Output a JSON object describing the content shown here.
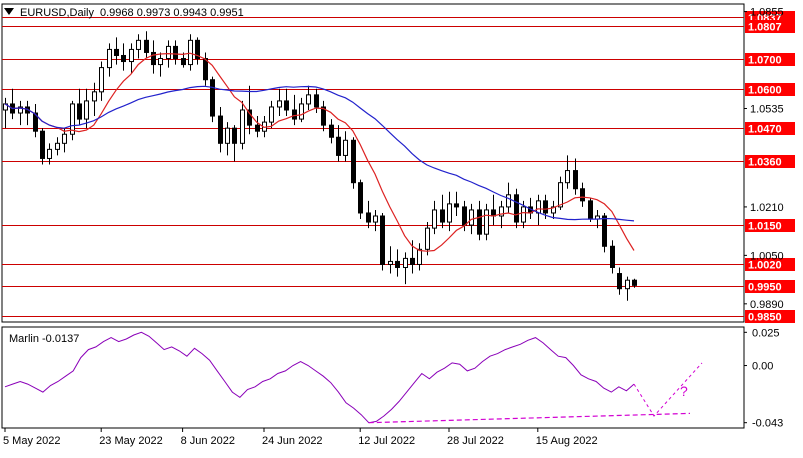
{
  "header": {
    "symbol": "EURUSD,Daily",
    "ohlc": "0.9968 0.9973 0.9943 0.9951"
  },
  "indicator": {
    "label": "Marlin -0.0137",
    "question_mark": "?"
  },
  "colors": {
    "background": "#ffffff",
    "frame": "#000000",
    "level_line": "#cc0000",
    "level_label_bg": "#ff0000",
    "level_label_text": "#ffffff",
    "ma_fast": "#dd2222",
    "ma_slow": "#2222cc",
    "bull_body": "#ffffff",
    "bear_body": "#000000",
    "oscillator": "#8a00b8",
    "dash_projection": "#d200d2"
  },
  "chart_data": [
    {
      "type": "candlestick",
      "title": "EURUSD,Daily",
      "ohlc_latest": {
        "open": 0.9968,
        "high": 0.9973,
        "low": 0.9943,
        "close": 0.9951
      },
      "y_axis": {
        "range": [
          0.983,
          1.088
        ],
        "tick_labels": [
          "1.0855",
          "1.0535",
          "1.0210",
          "1.0050",
          "0.9890"
        ]
      },
      "x_axis": {
        "tick_labels": [
          "5 May 2022",
          "23 May 2022",
          "8 Jun 2022",
          "24 Jun 2022",
          "12 Jul 2022",
          "28 Jul 2022",
          "15 Aug 2022"
        ]
      },
      "levels": [
        "1.0837",
        "1.0807",
        "1.0700",
        "1.0600",
        "1.0470",
        "1.0360",
        "1.0150",
        "1.0020",
        "0.9950",
        "0.9850"
      ],
      "series": [
        {
          "candles": [
            [
              1.053,
              1.057,
              1.047,
              1.055
            ],
            [
              1.055,
              1.06,
              1.05,
              1.052
            ],
            [
              1.052,
              1.056,
              1.048,
              1.054
            ],
            [
              1.054,
              1.056,
              1.048,
              1.052
            ],
            [
              1.052,
              1.055,
              1.044,
              1.046
            ],
            [
              1.046,
              1.047,
              1.035,
              1.037
            ],
            [
              1.037,
              1.042,
              1.035,
              1.04
            ],
            [
              1.04,
              1.044,
              1.038,
              1.042
            ],
            [
              1.042,
              1.047,
              1.039,
              1.045
            ],
            [
              1.045,
              1.056,
              1.043,
              1.055
            ],
            [
              1.055,
              1.06,
              1.048,
              1.05
            ],
            [
              1.05,
              1.06,
              1.047,
              1.056
            ],
            [
              1.056,
              1.062,
              1.051,
              1.059
            ],
            [
              1.059,
              1.069,
              1.056,
              1.067
            ],
            [
              1.067,
              1.075,
              1.064,
              1.073
            ],
            [
              1.073,
              1.077,
              1.068,
              1.071
            ],
            [
              1.071,
              1.075,
              1.066,
              1.069
            ],
            [
              1.069,
              1.075,
              1.065,
              1.073
            ],
            [
              1.073,
              1.078,
              1.07,
              1.076
            ],
            [
              1.076,
              1.079,
              1.07,
              1.072
            ],
            [
              1.072,
              1.076,
              1.065,
              1.068
            ],
            [
              1.068,
              1.072,
              1.064,
              1.07
            ],
            [
              1.07,
              1.076,
              1.067,
              1.074
            ],
            [
              1.074,
              1.076,
              1.068,
              1.07
            ],
            [
              1.07,
              1.072,
              1.067,
              1.068
            ],
            [
              1.068,
              1.078,
              1.066,
              1.076
            ],
            [
              1.076,
              1.077,
              1.068,
              1.07
            ],
            [
              1.07,
              1.072,
              1.061,
              1.063
            ],
            [
              1.063,
              1.064,
              1.049,
              1.051
            ],
            [
              1.051,
              1.054,
              1.039,
              1.042
            ],
            [
              1.042,
              1.049,
              1.038,
              1.047
            ],
            [
              1.047,
              1.048,
              1.036,
              1.042
            ],
            [
              1.042,
              1.056,
              1.04,
              1.053
            ],
            [
              1.053,
              1.061,
              1.045,
              1.048
            ],
            [
              1.048,
              1.051,
              1.044,
              1.046
            ],
            [
              1.046,
              1.051,
              1.044,
              1.049
            ],
            [
              1.049,
              1.056,
              1.047,
              1.054
            ],
            [
              1.054,
              1.06,
              1.051,
              1.056
            ],
            [
              1.056,
              1.06,
              1.051,
              1.053
            ],
            [
              1.053,
              1.058,
              1.048,
              1.05
            ],
            [
              1.05,
              1.057,
              1.049,
              1.055
            ],
            [
              1.055,
              1.061,
              1.053,
              1.058
            ],
            [
              1.058,
              1.06,
              1.052,
              1.054
            ],
            [
              1.054,
              1.056,
              1.046,
              1.048
            ],
            [
              1.048,
              1.05,
              1.042,
              1.044
            ],
            [
              1.044,
              1.048,
              1.036,
              1.038
            ],
            [
              1.038,
              1.046,
              1.036,
              1.043
            ],
            [
              1.043,
              1.044,
              1.027,
              1.029
            ],
            [
              1.029,
              1.03,
              1.017,
              1.019
            ],
            [
              1.019,
              1.023,
              1.014,
              1.016
            ],
            [
              1.016,
              1.02,
              1.013,
              1.018
            ],
            [
              1.018,
              1.019,
              1.0,
              1.002
            ],
            [
              1.002,
              1.008,
              0.999,
              1.003
            ],
            [
              1.003,
              1.007,
              0.998,
              1.001
            ],
            [
              1.001,
              1.006,
              0.9955,
              1.004
            ],
            [
              1.004,
              1.01,
              0.999,
              1.002
            ],
            [
              1.002,
              1.009,
              1.0,
              1.007
            ],
            [
              1.007,
              1.016,
              1.005,
              1.014
            ],
            [
              1.014,
              1.023,
              1.012,
              1.02
            ],
            [
              1.02,
              1.025,
              1.014,
              1.016
            ],
            [
              1.016,
              1.026,
              1.013,
              1.022
            ],
            [
              1.022,
              1.026,
              1.018,
              1.021
            ],
            [
              1.021,
              1.023,
              1.013,
              1.015
            ],
            [
              1.015,
              1.022,
              1.012,
              1.02
            ],
            [
              1.02,
              1.023,
              1.01,
              1.012
            ],
            [
              1.012,
              1.022,
              1.01,
              1.02
            ],
            [
              1.02,
              1.025,
              1.015,
              1.018
            ],
            [
              1.018,
              1.023,
              1.014,
              1.021
            ],
            [
              1.021,
              1.029,
              1.019,
              1.025
            ],
            [
              1.025,
              1.027,
              1.014,
              1.016
            ],
            [
              1.016,
              1.023,
              1.014,
              1.021
            ],
            [
              1.021,
              1.024,
              1.017,
              1.019
            ],
            [
              1.019,
              1.025,
              1.015,
              1.023
            ],
            [
              1.023,
              1.025,
              1.017,
              1.019
            ],
            [
              1.019,
              1.023,
              1.017,
              1.021
            ],
            [
              1.021,
              1.031,
              1.02,
              1.029
            ],
            [
              1.029,
              1.038,
              1.027,
              1.033
            ],
            [
              1.033,
              1.037,
              1.025,
              1.027
            ],
            [
              1.027,
              1.029,
              1.021,
              1.023
            ],
            [
              1.023,
              1.024,
              1.016,
              1.017
            ],
            [
              1.017,
              1.02,
              1.014,
              1.018
            ],
            [
              1.018,
              1.019,
              1.006,
              1.008
            ],
            [
              1.008,
              1.01,
              0.999,
              1.001
            ],
            [
              0.999,
              1.001,
              0.992,
              0.994
            ],
            [
              0.994,
              0.998,
              0.99,
              0.9968
            ],
            [
              0.9968,
              0.9973,
              0.9943,
              0.9951
            ]
          ]
        }
      ]
    },
    {
      "type": "line",
      "title": "Marlin -0.0137",
      "y_axis": {
        "range": [
          -0.047,
          0.029
        ],
        "tick_labels": [
          "0.025",
          "0.00",
          "-0.043"
        ]
      },
      "series": [
        {
          "values": [
            -0.016,
            -0.014,
            -0.012,
            -0.014,
            -0.017,
            -0.02,
            -0.015,
            -0.012,
            -0.008,
            -0.004,
            0.006,
            0.012,
            0.014,
            0.018,
            0.021,
            0.018,
            0.02,
            0.023,
            0.025,
            0.022,
            0.017,
            0.012,
            0.014,
            0.011,
            0.007,
            0.013,
            0.009,
            0.004,
            -0.004,
            -0.012,
            -0.02,
            -0.024,
            -0.018,
            -0.016,
            -0.012,
            -0.01,
            -0.006,
            -0.004,
            0.0,
            0.003,
            0.0,
            -0.004,
            -0.008,
            -0.013,
            -0.02,
            -0.028,
            -0.032,
            -0.037,
            -0.043,
            -0.042,
            -0.038,
            -0.033,
            -0.027,
            -0.02,
            -0.013,
            -0.006,
            -0.01,
            -0.005,
            -0.002,
            0.002,
            0.001,
            -0.004,
            -0.002,
            0.003,
            0.007,
            0.009,
            0.012,
            0.014,
            0.016,
            0.019,
            0.021,
            0.017,
            0.012,
            0.007,
            0.006,
            0.0,
            -0.007,
            -0.01,
            -0.012,
            -0.017,
            -0.02,
            -0.016,
            -0.019,
            -0.014
          ]
        }
      ]
    }
  ]
}
